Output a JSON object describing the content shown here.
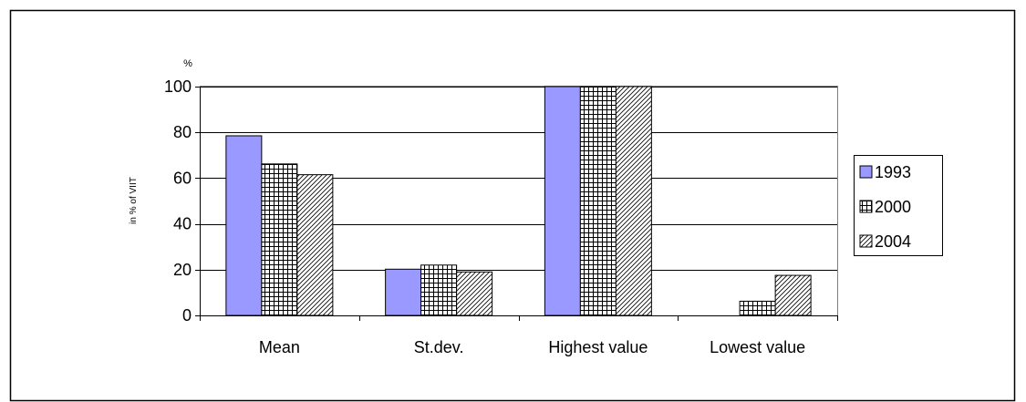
{
  "chart_data": {
    "type": "bar",
    "title": "",
    "xlabel": "",
    "ylabel": "in % of VIIT",
    "unit_label": "%",
    "categories": [
      "Mean",
      "St.dev.",
      "Highest value",
      "Lowest value"
    ],
    "series": [
      {
        "name": "1993",
        "values": [
          78.5,
          20.2,
          100,
          0
        ],
        "color": "#9999ff",
        "pattern": "solid"
      },
      {
        "name": "2000",
        "values": [
          66.2,
          22.0,
          100,
          6.2
        ],
        "color": "#ffffff",
        "pattern": "grid"
      },
      {
        "name": "2004",
        "values": [
          61.5,
          19.0,
          100,
          17.5
        ],
        "color": "#ffffff",
        "pattern": "diagonal"
      }
    ],
    "ylim": [
      0,
      100
    ],
    "yticks": [
      0,
      20,
      40,
      60,
      80,
      100
    ],
    "grid": true,
    "legend_position": "right"
  }
}
